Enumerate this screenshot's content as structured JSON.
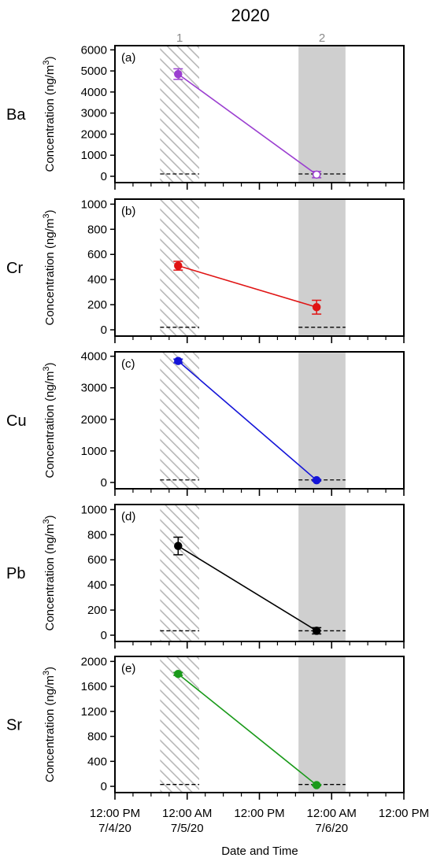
{
  "figure": {
    "title": "2020",
    "xlabel": "Date and Time",
    "period_labels": [
      "1",
      "2"
    ]
  },
  "x_axis": {
    "unit": "hours since 12:00 PM 7/4/20",
    "range": [
      0,
      48
    ],
    "major_ticks": [
      0,
      12,
      24,
      36,
      48
    ],
    "minor_ticks": [
      3,
      6,
      9,
      15,
      18,
      21,
      27,
      30,
      33,
      39,
      42,
      45
    ],
    "tick_labels": [
      {
        "time": "12:00 PM",
        "date": "7/4/20"
      },
      {
        "time": "12:00 AM",
        "date": "7/5/20"
      },
      {
        "time": "12:00 PM",
        "date": ""
      },
      {
        "time": "12:00 AM",
        "date": "7/6/20"
      },
      {
        "time": "12:00 PM",
        "date": ""
      }
    ]
  },
  "periods": [
    {
      "label": "1",
      "start": 7.5,
      "end": 14.0,
      "style": "hatched"
    },
    {
      "label": "2",
      "start": 30.5,
      "end": 38.3,
      "style": "solid"
    }
  ],
  "chart_data": [
    {
      "type": "line",
      "panel": "(a)",
      "element": "Ba",
      "color": "#9b3fd0",
      "ylabel": "Concentration (ng/m",
      "ylabel_sup": "3",
      "ylabel_end": ")",
      "ylim": [
        -300,
        6200
      ],
      "yticks": [
        0,
        1000,
        2000,
        3000,
        4000,
        5000,
        6000
      ],
      "x": [
        10.5,
        33.5
      ],
      "y": [
        4850,
        80
      ],
      "yerr": [
        250,
        150
      ],
      "marker_filled": [
        true,
        false
      ],
      "detection_limit": 110
    },
    {
      "type": "line",
      "panel": "(b)",
      "element": "Cr",
      "color": "#e01414",
      "ylabel": "Concentration (ng/m",
      "ylabel_sup": "3",
      "ylabel_end": ")",
      "ylim": [
        -50,
        1040
      ],
      "yticks": [
        0,
        200,
        400,
        600,
        800,
        1000
      ],
      "x": [
        10.5,
        33.5
      ],
      "y": [
        510,
        180
      ],
      "yerr": [
        35,
        55
      ],
      "marker_filled": [
        true,
        true
      ],
      "detection_limit": 20
    },
    {
      "type": "line",
      "panel": "(c)",
      "element": "Cu",
      "color": "#1414d8",
      "ylabel": "Concentration (ng/m",
      "ylabel_sup": "3",
      "ylabel_end": ")",
      "ylim": [
        -200,
        4140
      ],
      "yticks": [
        0,
        1000,
        2000,
        3000,
        4000
      ],
      "x": [
        10.5,
        33.5
      ],
      "y": [
        3850,
        70
      ],
      "yerr": [
        60,
        25
      ],
      "marker_filled": [
        true,
        true
      ],
      "detection_limit": 80
    },
    {
      "type": "line",
      "panel": "(d)",
      "element": "Pb",
      "color": "#000000",
      "ylabel": "Concentration (ng/m",
      "ylabel_sup": "3",
      "ylabel_end": ")",
      "ylim": [
        -50,
        1040
      ],
      "yticks": [
        0,
        200,
        400,
        600,
        800,
        1000
      ],
      "x": [
        10.5,
        33.5
      ],
      "y": [
        710,
        35
      ],
      "yerr": [
        70,
        25
      ],
      "marker_filled": [
        true,
        true
      ],
      "detection_limit": 35
    },
    {
      "type": "line",
      "panel": "(e)",
      "element": "Sr",
      "color": "#1a9a1a",
      "ylabel": "Concentration (ng/m",
      "ylabel_sup": "3",
      "ylabel_end": ")",
      "ylim": [
        -100,
        2080
      ],
      "yticks": [
        0,
        400,
        800,
        1200,
        1600,
        2000
      ],
      "x": [
        10.5,
        33.5
      ],
      "y": [
        1800,
        20
      ],
      "yerr": [
        25,
        10
      ],
      "marker_filled": [
        true,
        true
      ],
      "detection_limit": 30
    }
  ]
}
